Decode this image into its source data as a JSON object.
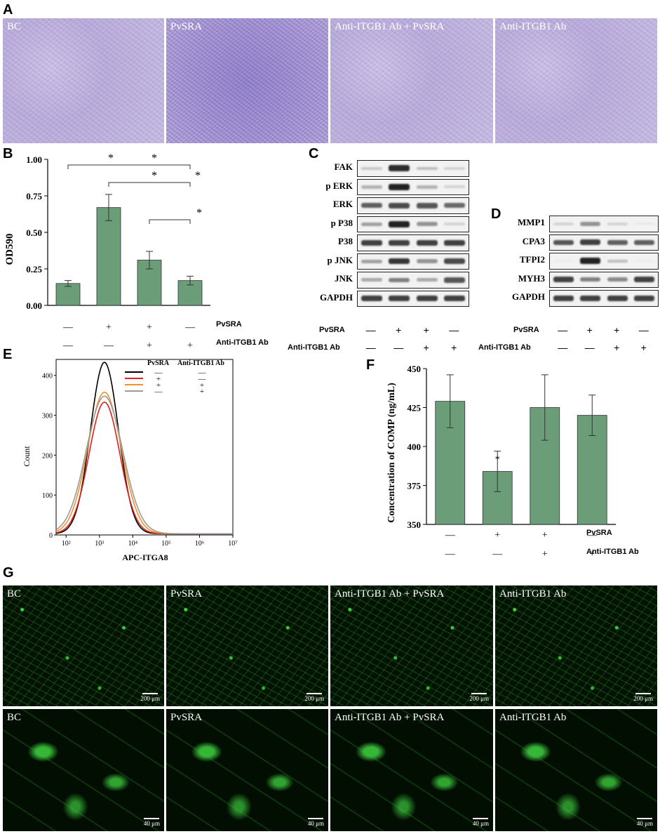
{
  "panels": {
    "A": "A",
    "B": "B",
    "C": "C",
    "D": "D",
    "E": "E",
    "F": "F",
    "G": "G"
  },
  "conditions": [
    "BC",
    "PvSRA",
    "Anti-ITGB1 Ab + PvSRA",
    "Anti-ITGB1 Ab"
  ],
  "row_labels": {
    "pvsra": "PvSRA",
    "anti": "Anti-ITGB1 Ab"
  },
  "signs": {
    "pvsra": [
      "—",
      "+",
      "+",
      "—"
    ],
    "anti": [
      "—",
      "—",
      "+",
      "+"
    ]
  },
  "chart_B": {
    "type": "bar",
    "ylabel": "OD590",
    "yticks": [
      "0.00",
      "0.25",
      "0.50",
      "0.75",
      "1.00"
    ],
    "ylim": [
      0,
      1.0
    ],
    "values": [
      0.15,
      0.67,
      0.31,
      0.17
    ],
    "errors": [
      0.02,
      0.09,
      0.06,
      0.03
    ],
    "color": "#6b9e78",
    "star": "*"
  },
  "chart_F": {
    "type": "bar",
    "ylabel": "Concentration of COMP (ng/mL)",
    "yticks": [
      "350",
      "375",
      "400",
      "425",
      "450"
    ],
    "ylim": [
      350,
      450
    ],
    "values": [
      429,
      384,
      425,
      420
    ],
    "errors": [
      17,
      13,
      21,
      13
    ],
    "color": "#6b9e78",
    "star": "*"
  },
  "chart_E": {
    "type": "line",
    "ylabel": "Count",
    "xlabel": "APC-ITGA8",
    "yticks": [
      "0",
      "100",
      "200",
      "300",
      "400"
    ],
    "ylim": [
      0,
      440
    ],
    "xticks": [
      "10²",
      "10³",
      "10⁴",
      "10⁵",
      "10⁶",
      "10⁷"
    ],
    "legend": {
      "col1": "PvSRA",
      "col2": "Anti-ITGB1 Ab",
      "rows": [
        {
          "color": "#000000",
          "pvsra": "—",
          "anti": "—"
        },
        {
          "color": "#e0201a",
          "pvsra": "+",
          "anti": "—"
        },
        {
          "color": "#f0922b",
          "pvsra": "+",
          "anti": "+"
        },
        {
          "color": "#9a9a9a",
          "pvsra": "—",
          "anti": "+"
        }
      ]
    },
    "series": [
      {
        "color": "#000000",
        "peak": 430
      },
      {
        "color": "#e0201a",
        "peak": 330
      },
      {
        "color": "#f0922b",
        "peak": 355
      },
      {
        "color": "#9a9a9a",
        "peak": 345
      }
    ]
  },
  "blot_C": [
    "FAK",
    "p ERK",
    "ERK",
    "p P38",
    "P38",
    "p JNK",
    "JNK",
    "GAPDH"
  ],
  "blot_D": [
    "MMP1",
    "CPA3",
    "TFPI2",
    "MYH3",
    "GAPDH"
  ],
  "scale_bars": {
    "low": "200 μm",
    "high": "40 μm"
  }
}
